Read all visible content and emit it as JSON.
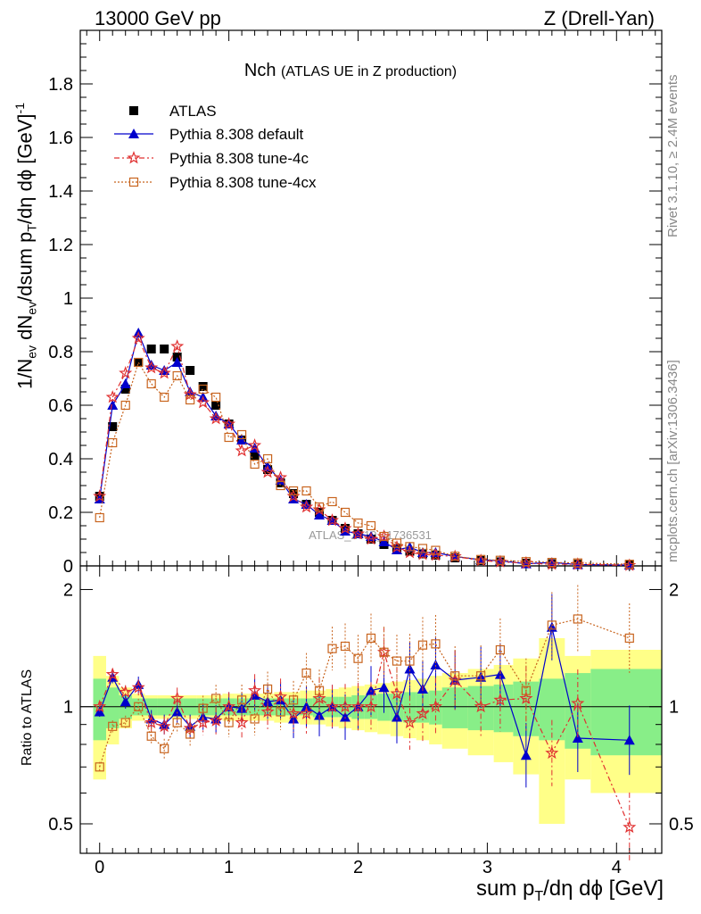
{
  "header": {
    "left": "13000 GeV pp",
    "right": "Z (Drell-Yan)"
  },
  "plot_title": {
    "main": "Nch",
    "sub": "(ATLAS UE in Z production)"
  },
  "side_labels": {
    "rivet": "Rivet 3.1.10, ≥ 2.4M events",
    "mcplots": "mcplots.cern.ch [arXiv:1306.3436]"
  },
  "watermark": "ATLAS_2019_I1736531",
  "axes": {
    "main_ylabel": "1/N_ev dN_ev/dsum p_T/dη dϕ [GeV]^-1",
    "ratio_ylabel": "Ratio to ATLAS",
    "xlabel": "sum p_T/dη dϕ [GeV]",
    "main_yticks": [
      "0",
      "0.2",
      "0.4",
      "0.6",
      "0.8",
      "1",
      "1.2",
      "1.4",
      "1.6",
      "1.8"
    ],
    "ratio_yticks": [
      "0.5",
      "1",
      "2"
    ],
    "xticks": [
      "0",
      "1",
      "2",
      "3",
      "4"
    ]
  },
  "chart_data": {
    "type": "scatter",
    "x": [
      0,
      0.1,
      0.2,
      0.3,
      0.4,
      0.5,
      0.6,
      0.7,
      0.8,
      0.9,
      1.0,
      1.1,
      1.2,
      1.3,
      1.4,
      1.5,
      1.6,
      1.7,
      1.8,
      1.9,
      2.0,
      2.1,
      2.2,
      2.3,
      2.4,
      2.5,
      2.6,
      2.75,
      2.95,
      3.1,
      3.3,
      3.5,
      3.7,
      4.1
    ],
    "xlim": [
      -0.15,
      4.35
    ],
    "ylim_main": [
      0,
      2.0
    ],
    "ylim_ratio": [
      0.42,
      2.3
    ],
    "ratio_scale": "log",
    "series": [
      {
        "name": "ATLAS",
        "style": "marker",
        "color": "#000000",
        "values": [
          0.26,
          0.52,
          0.66,
          0.76,
          0.81,
          0.81,
          0.78,
          0.73,
          0.67,
          0.6,
          0.53,
          0.47,
          0.41,
          0.36,
          0.31,
          0.27,
          0.23,
          0.2,
          0.17,
          0.14,
          0.12,
          0.1,
          0.08,
          0.065,
          0.055,
          0.045,
          0.04,
          0.03,
          0.02,
          0.015,
          0.01,
          0.008,
          0.006,
          0.004
        ]
      },
      {
        "name": "Pythia 8.308 default",
        "style": "solid",
        "color": "#0000cc",
        "values": [
          0.25,
          0.6,
          0.68,
          0.87,
          0.75,
          0.73,
          0.76,
          0.65,
          0.63,
          0.56,
          0.53,
          0.47,
          0.44,
          0.37,
          0.32,
          0.25,
          0.23,
          0.19,
          0.17,
          0.13,
          0.12,
          0.11,
          0.09,
          0.06,
          0.07,
          0.05,
          0.05,
          0.035,
          0.023,
          0.019,
          0.008,
          0.013,
          0.005,
          0.003
        ]
      },
      {
        "name": "Pythia 8.308 tune-4c",
        "style": "dashdot",
        "color": "#e03030",
        "values": [
          0.26,
          0.63,
          0.72,
          0.85,
          0.74,
          0.72,
          0.82,
          0.64,
          0.61,
          0.55,
          0.53,
          0.43,
          0.45,
          0.35,
          0.33,
          0.26,
          0.22,
          0.21,
          0.17,
          0.14,
          0.12,
          0.1,
          0.11,
          0.07,
          0.05,
          0.043,
          0.04,
          0.035,
          0.02,
          0.015,
          0.0105,
          0.006,
          0.006,
          0.002
        ]
      },
      {
        "name": "Pythia 8.308 tune-4cx",
        "style": "dotted",
        "color": "#c8641e",
        "values": [
          0.18,
          0.46,
          0.6,
          0.76,
          0.68,
          0.63,
          0.71,
          0.62,
          0.66,
          0.63,
          0.48,
          0.49,
          0.38,
          0.4,
          0.3,
          0.28,
          0.28,
          0.22,
          0.24,
          0.2,
          0.16,
          0.15,
          0.11,
          0.085,
          0.072,
          0.065,
          0.058,
          0.036,
          0.024,
          0.021,
          0.016,
          0.013,
          0.011,
          0.006
        ]
      }
    ],
    "ratios": [
      {
        "name": "Pythia 8.308 default",
        "values": [
          0.97,
          1.19,
          1.03,
          1.14,
          0.93,
          0.9,
          0.97,
          0.89,
          0.94,
          0.93,
          1.0,
          0.99,
          1.07,
          1.03,
          1.04,
          0.93,
          1.0,
          0.95,
          1.0,
          0.94,
          1.0,
          1.1,
          1.12,
          0.94,
          1.25,
          1.11,
          1.28,
          1.17,
          1.19,
          1.21,
          0.75,
          1.6,
          0.83,
          0.82
        ]
      },
      {
        "name": "Pythia 8.308 tune-4c",
        "values": [
          1.0,
          1.21,
          1.09,
          1.12,
          0.91,
          0.89,
          1.05,
          0.88,
          0.91,
          0.92,
          1.0,
          0.91,
          1.1,
          0.97,
          1.06,
          0.96,
          0.96,
          1.05,
          1.0,
          1.0,
          1.0,
          1.0,
          1.38,
          1.08,
          0.91,
          0.96,
          1.0,
          1.17,
          1.0,
          1.04,
          1.05,
          0.76,
          1.02,
          0.49
        ]
      },
      {
        "name": "Pythia 8.308 tune-4cx",
        "values": [
          0.7,
          0.89,
          0.91,
          1.0,
          0.84,
          0.78,
          0.91,
          0.85,
          0.99,
          1.05,
          0.91,
          1.04,
          0.93,
          1.11,
          0.97,
          1.04,
          1.22,
          1.1,
          1.41,
          1.43,
          1.33,
          1.5,
          1.38,
          1.31,
          1.31,
          1.44,
          1.45,
          1.2,
          1.2,
          1.4,
          1.1,
          1.62,
          1.68,
          1.5
        ]
      }
    ],
    "uncertainty_bands": {
      "edges": [
        -0.05,
        0.05,
        0.15,
        0.25,
        0.35,
        0.45,
        0.55,
        0.65,
        0.75,
        0.85,
        0.95,
        1.05,
        1.15,
        1.25,
        1.35,
        1.45,
        1.55,
        1.65,
        1.75,
        1.85,
        1.95,
        2.05,
        2.15,
        2.25,
        2.35,
        2.45,
        2.55,
        2.65,
        2.85,
        3.05,
        3.2,
        3.4,
        3.6,
        3.8,
        4.35
      ],
      "green": [
        0.18,
        0.12,
        0.07,
        0.05,
        0.05,
        0.05,
        0.05,
        0.05,
        0.05,
        0.05,
        0.05,
        0.05,
        0.05,
        0.05,
        0.05,
        0.05,
        0.05,
        0.06,
        0.06,
        0.06,
        0.07,
        0.07,
        0.08,
        0.08,
        0.09,
        0.09,
        0.1,
        0.12,
        0.13,
        0.14,
        0.16,
        0.18,
        0.22,
        0.25
      ],
      "yellow": [
        0.35,
        0.2,
        0.12,
        0.08,
        0.07,
        0.07,
        0.07,
        0.07,
        0.07,
        0.07,
        0.08,
        0.08,
        0.08,
        0.08,
        0.09,
        0.09,
        0.1,
        0.1,
        0.11,
        0.12,
        0.13,
        0.14,
        0.15,
        0.16,
        0.17,
        0.18,
        0.2,
        0.22,
        0.25,
        0.28,
        0.33,
        0.5,
        0.35,
        0.4
      ]
    },
    "legend_position": "top-left"
  }
}
